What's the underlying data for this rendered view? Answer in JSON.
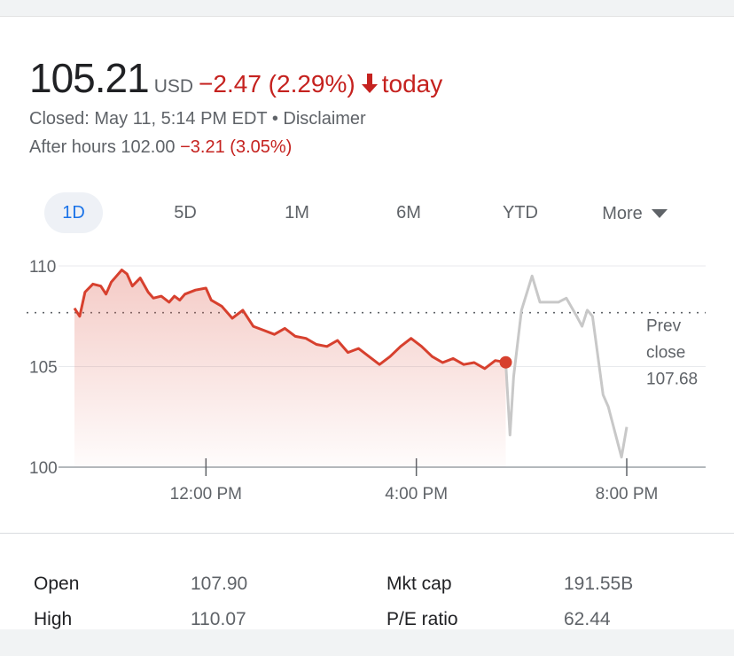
{
  "quote": {
    "price": "105.21",
    "currency": "USD",
    "change": "−2.47 (2.29%)",
    "period": "today",
    "status": "Closed: May 11, 5:14 PM EDT • Disclaimer",
    "after_hours_label": "After hours 102.00",
    "after_hours_change": "−3.21 (3.05%)"
  },
  "tabs": [
    {
      "label": "1D",
      "active": true
    },
    {
      "label": "5D"
    },
    {
      "label": "1M"
    },
    {
      "label": "6M"
    },
    {
      "label": "YTD"
    },
    {
      "label": "More"
    }
  ],
  "colors": {
    "negative": "#c5221f",
    "line_regular": "#d7402e",
    "line_after_hours": "#c8c8c8",
    "accent": "#1a73e8"
  },
  "chart_data": {
    "type": "line",
    "ylim": [
      100,
      110
    ],
    "y_ticks": [
      "110",
      "105",
      "100"
    ],
    "x_ticks": [
      "12:00 PM",
      "4:00 PM",
      "8:00 PM"
    ],
    "prev_close": {
      "label_lines": [
        "Prev",
        "close",
        "107.68"
      ],
      "value": 107.68
    },
    "grid": true,
    "series": [
      {
        "session": "regular",
        "points": [
          [
            9.5,
            107.9
          ],
          [
            9.6,
            107.5
          ],
          [
            9.7,
            108.7
          ],
          [
            9.85,
            109.1
          ],
          [
            10.0,
            109.0
          ],
          [
            10.1,
            108.6
          ],
          [
            10.2,
            109.2
          ],
          [
            10.3,
            109.5
          ],
          [
            10.4,
            109.8
          ],
          [
            10.5,
            109.6
          ],
          [
            10.6,
            109.0
          ],
          [
            10.75,
            109.4
          ],
          [
            10.9,
            108.7
          ],
          [
            11.0,
            108.4
          ],
          [
            11.15,
            108.5
          ],
          [
            11.3,
            108.2
          ],
          [
            11.4,
            108.5
          ],
          [
            11.5,
            108.3
          ],
          [
            11.6,
            108.6
          ],
          [
            11.8,
            108.8
          ],
          [
            12.0,
            108.9
          ],
          [
            12.1,
            108.3
          ],
          [
            12.3,
            108.0
          ],
          [
            12.5,
            107.4
          ],
          [
            12.7,
            107.8
          ],
          [
            12.9,
            107.0
          ],
          [
            13.1,
            106.8
          ],
          [
            13.3,
            106.6
          ],
          [
            13.5,
            106.9
          ],
          [
            13.7,
            106.5
          ],
          [
            13.9,
            106.4
          ],
          [
            14.1,
            106.1
          ],
          [
            14.3,
            106.0
          ],
          [
            14.5,
            106.3
          ],
          [
            14.7,
            105.7
          ],
          [
            14.9,
            105.9
          ],
          [
            15.1,
            105.5
          ],
          [
            15.3,
            105.1
          ],
          [
            15.5,
            105.5
          ],
          [
            15.7,
            106.0
          ],
          [
            15.9,
            106.4
          ],
          [
            16.1,
            106.0
          ],
          [
            16.3,
            105.5
          ],
          [
            16.5,
            105.2
          ],
          [
            16.7,
            105.4
          ],
          [
            16.9,
            105.1
          ],
          [
            17.1,
            105.2
          ],
          [
            17.3,
            104.9
          ],
          [
            17.5,
            105.3
          ],
          [
            17.7,
            105.21
          ]
        ]
      },
      {
        "session": "after_hours",
        "points": [
          [
            17.7,
            105.21
          ],
          [
            17.78,
            101.6
          ],
          [
            17.85,
            104.5
          ],
          [
            18.0,
            107.8
          ],
          [
            18.2,
            109.5
          ],
          [
            18.35,
            108.2
          ],
          [
            18.55,
            108.2
          ],
          [
            18.7,
            108.2
          ],
          [
            18.85,
            108.4
          ],
          [
            19.05,
            107.5
          ],
          [
            19.15,
            107.0
          ],
          [
            19.25,
            107.8
          ],
          [
            19.35,
            107.5
          ],
          [
            19.55,
            103.6
          ],
          [
            19.65,
            103.0
          ],
          [
            19.9,
            100.5
          ],
          [
            20.0,
            102.0
          ]
        ]
      }
    ]
  },
  "stats": [
    {
      "label": "Open",
      "value": "107.90"
    },
    {
      "label": "High",
      "value": "110.07"
    },
    {
      "label": "Mkt cap",
      "value": "191.55B"
    },
    {
      "label": "P/E ratio",
      "value": "62.44"
    }
  ]
}
